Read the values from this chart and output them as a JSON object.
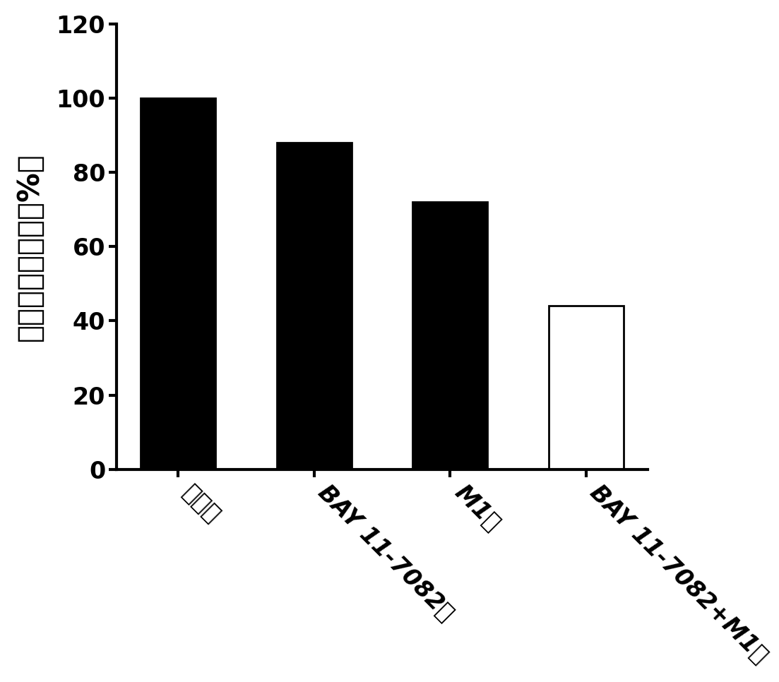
{
  "categories": [
    "对照组",
    "BAY 11-7082组",
    "M1组",
    "BAY 11-7082+M1组"
  ],
  "values": [
    100,
    88,
    72,
    44
  ],
  "bar_colors": [
    "#000000",
    "#000000",
    "#000000",
    "#ffffff"
  ],
  "bar_edgecolors": [
    "#000000",
    "#000000",
    "#000000",
    "#000000"
  ],
  "ylabel": "相对细胞存活率（%）",
  "ylim": [
    0,
    120
  ],
  "yticks": [
    0,
    20,
    40,
    60,
    80,
    100,
    120
  ],
  "background_color": "#ffffff",
  "bar_width": 0.55,
  "ylabel_fontsize": 30,
  "tick_fontsize": 24,
  "xlabel_rotation": -45,
  "linewidth": 3.0,
  "edge_linewidth": 2.0
}
